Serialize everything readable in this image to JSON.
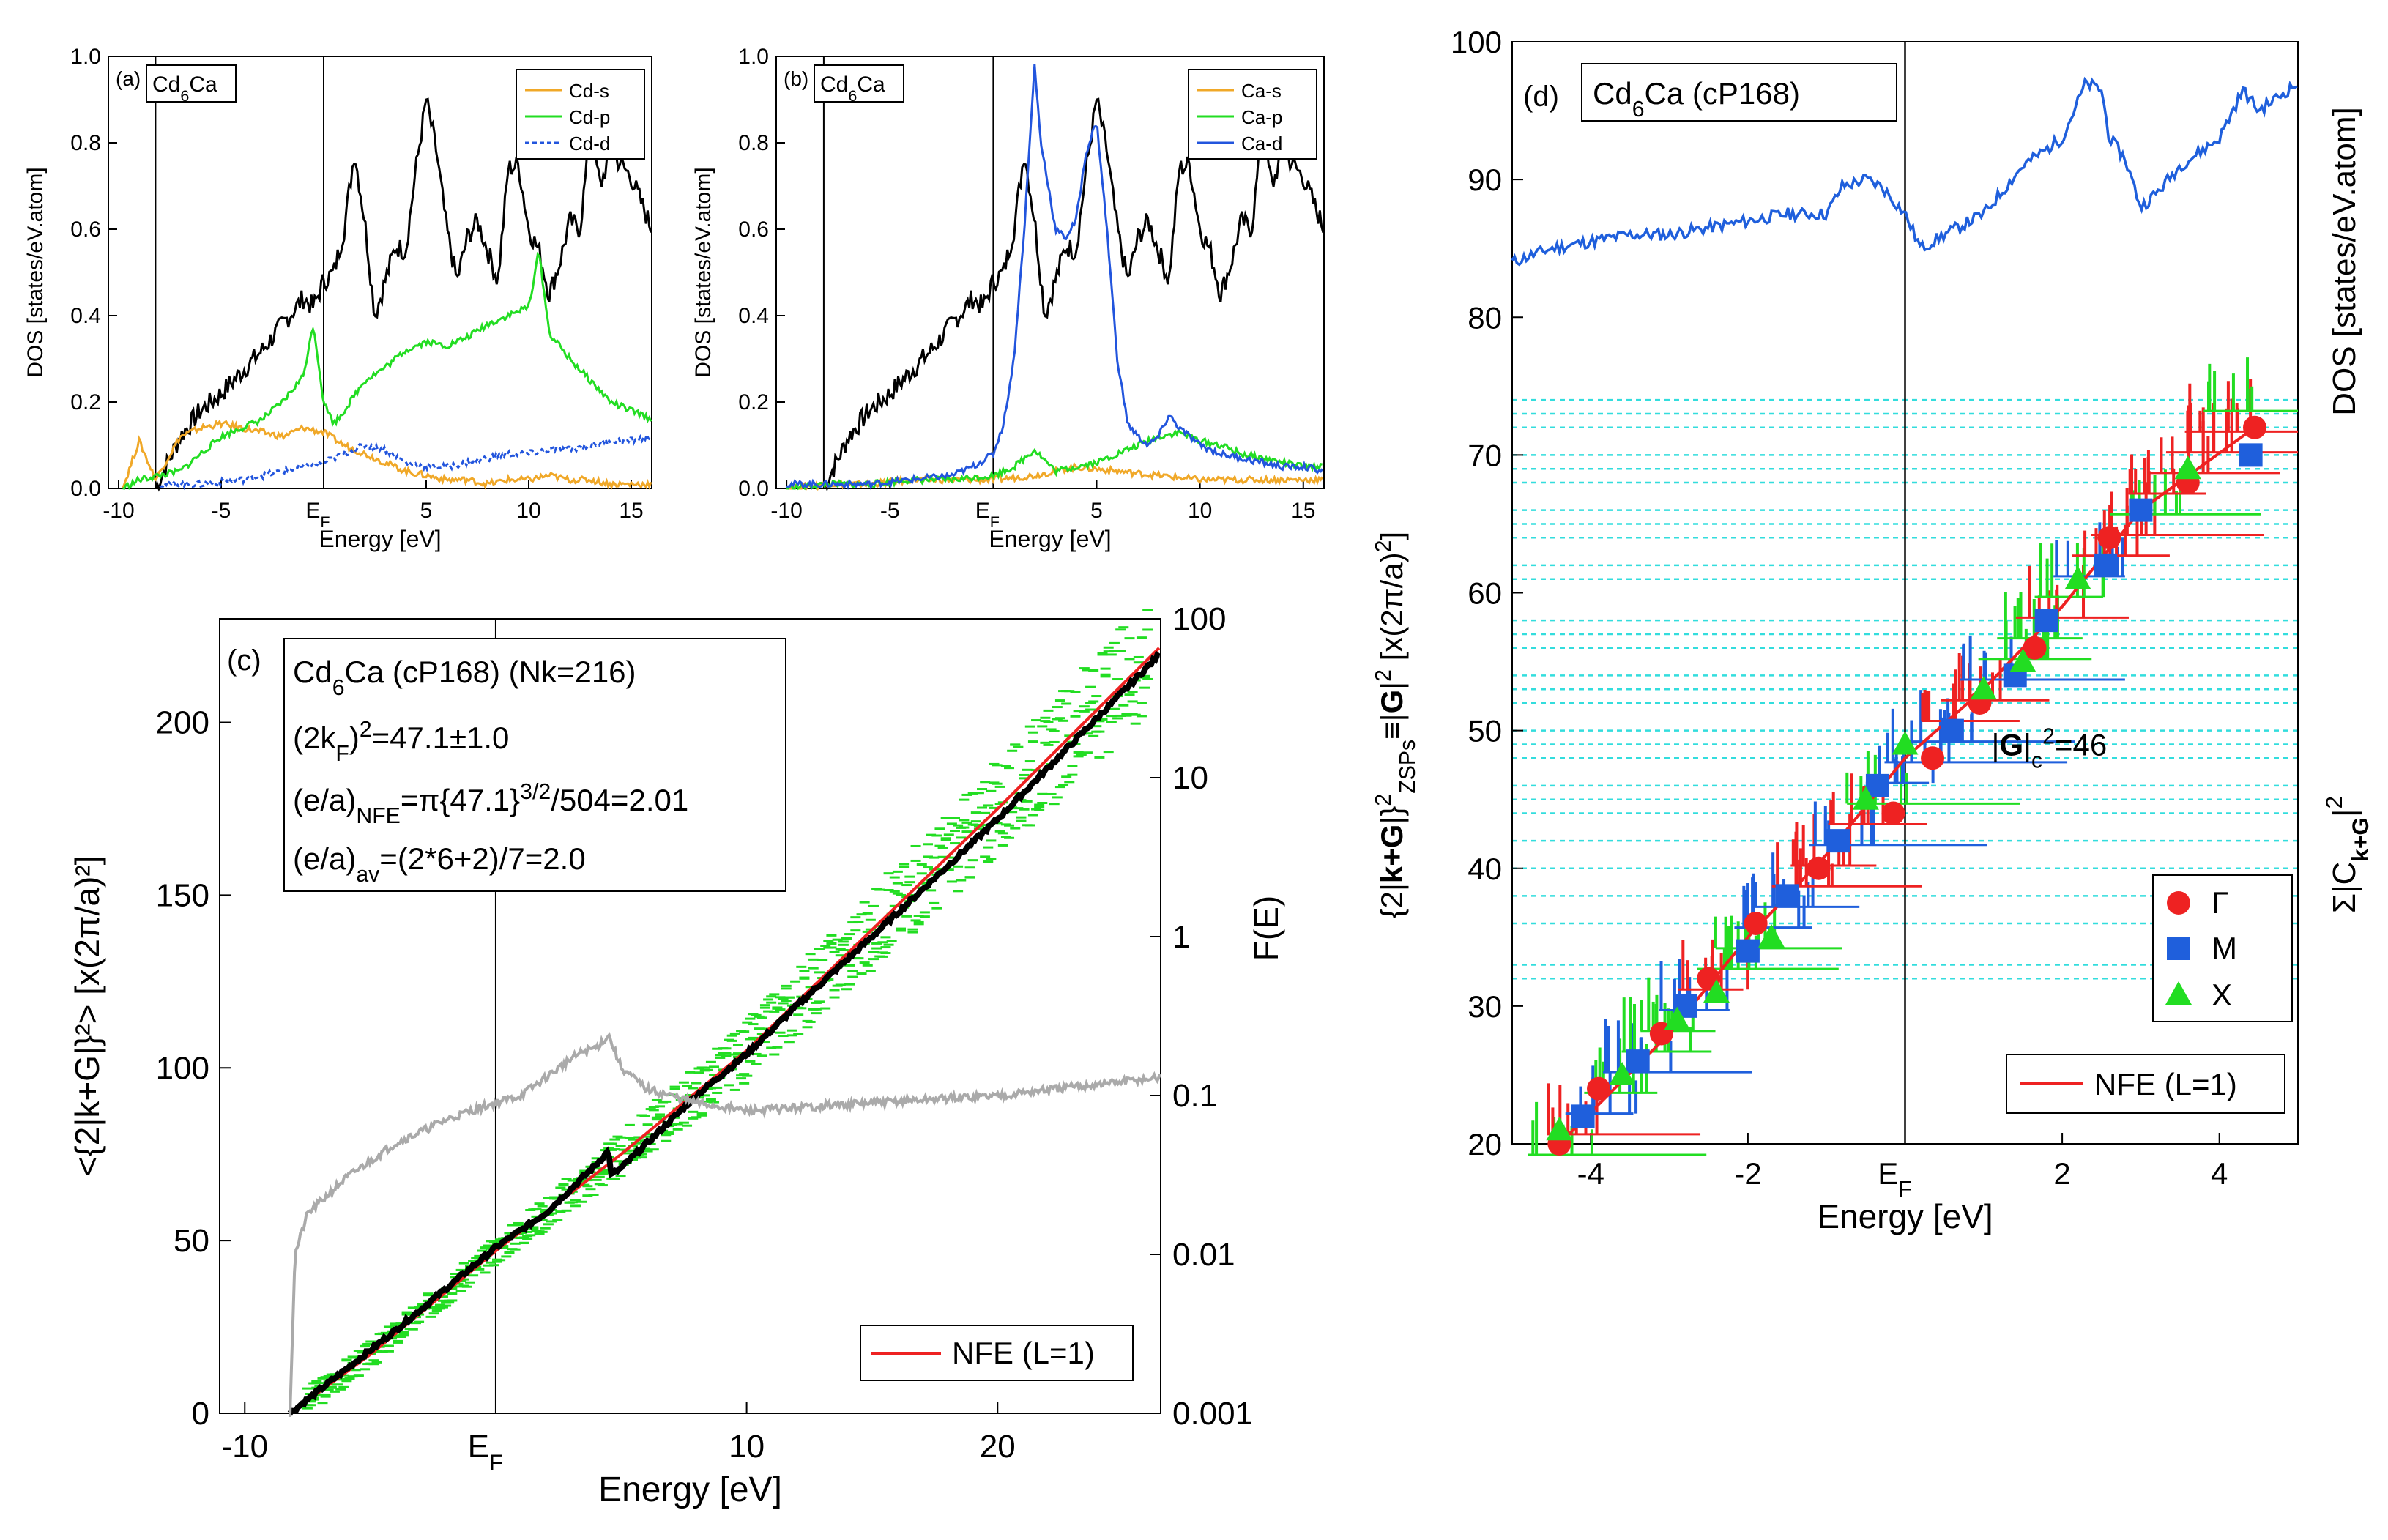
{
  "chart_data": [
    {
      "id": "a",
      "type": "line",
      "panel_label": "(a)",
      "compound_base": "Cd",
      "compound_sub": "6",
      "compound_tail": "Ca",
      "xlabel": "Energy [eV]",
      "ylabel": "DOS [states/eV.atom]",
      "xlim": [
        -10.5,
        16
      ],
      "ylim": [
        0,
        1.0
      ],
      "xticks": [
        -10,
        -5,
        5,
        10,
        15
      ],
      "xtick_labels": [
        "-10",
        "-5",
        "5",
        "10",
        "15"
      ],
      "ef_label": "E",
      "ef_sub": "F",
      "ef_value": 0,
      "vlines": [
        -8.2,
        0
      ],
      "yticks": [
        0.0,
        0.2,
        0.4,
        0.6,
        0.8,
        1.0
      ],
      "ytick_labels": [
        "0.0",
        "0.2",
        "0.4",
        "0.6",
        "0.8",
        "1.0"
      ],
      "legend": [
        "Cd-s",
        "Cd-p",
        "Cd-d"
      ],
      "colors": [
        "#f0a828",
        "#22dd22",
        "#2255dd"
      ],
      "series": [
        {
          "name": "total",
          "color": "#000000",
          "x": [
            -8.2,
            -7,
            -6,
            -5,
            -4,
            -3,
            -2,
            -1,
            -0.5,
            0,
            0.5,
            1,
            1.5,
            2,
            2.5,
            3,
            3.5,
            4,
            4.5,
            5,
            5.5,
            6,
            6.5,
            7,
            7.5,
            8,
            8.5,
            9,
            9.5,
            10,
            10.5,
            11,
            11.5,
            12,
            12.5,
            13,
            13.5,
            14,
            14.5,
            15,
            16
          ],
          "y": [
            0,
            0.12,
            0.18,
            0.22,
            0.27,
            0.32,
            0.38,
            0.44,
            0.42,
            0.48,
            0.5,
            0.6,
            0.78,
            0.62,
            0.4,
            0.48,
            0.56,
            0.55,
            0.74,
            0.9,
            0.78,
            0.6,
            0.48,
            0.58,
            0.62,
            0.55,
            0.48,
            0.74,
            0.75,
            0.6,
            0.55,
            0.45,
            0.52,
            0.62,
            0.6,
            0.82,
            0.7,
            0.78,
            0.75,
            0.72,
            0.6
          ]
        },
        {
          "name": "Cd-s",
          "color": "#f0a828",
          "x": [
            -9.8,
            -9,
            -8.2,
            -7,
            -6,
            -5,
            -4,
            -3,
            -2,
            -1,
            0,
            1,
            2,
            3,
            4,
            5,
            6,
            7,
            8,
            9,
            10,
            11,
            12,
            13,
            14,
            15,
            16
          ],
          "y": [
            0.0,
            0.11,
            0.02,
            0.12,
            0.14,
            0.15,
            0.14,
            0.13,
            0.12,
            0.14,
            0.13,
            0.1,
            0.08,
            0.06,
            0.04,
            0.03,
            0.02,
            0.02,
            0.01,
            0.02,
            0.02,
            0.03,
            0.02,
            0.02,
            0.01,
            0.01,
            0.01
          ]
        },
        {
          "name": "Cd-p",
          "color": "#22dd22",
          "x": [
            -9.8,
            -9,
            -8,
            -7,
            -6,
            -5,
            -4,
            -3,
            -2,
            -1,
            -0.5,
            0,
            0.5,
            1,
            2,
            3,
            4,
            5,
            6,
            7,
            8,
            9,
            10,
            10.5,
            11,
            12,
            13,
            14,
            15,
            16
          ],
          "y": [
            0,
            0.02,
            0.03,
            0.04,
            0.08,
            0.12,
            0.14,
            0.16,
            0.2,
            0.26,
            0.38,
            0.2,
            0.15,
            0.18,
            0.25,
            0.28,
            0.32,
            0.34,
            0.33,
            0.35,
            0.38,
            0.4,
            0.42,
            0.55,
            0.36,
            0.3,
            0.25,
            0.2,
            0.18,
            0.16
          ]
        },
        {
          "name": "Cd-d",
          "color": "#2255dd",
          "dashed": true,
          "x": [
            -8,
            -6,
            -4,
            -2,
            -1,
            0,
            1,
            2,
            3,
            4,
            5,
            6,
            7,
            8,
            9,
            10,
            11,
            12,
            13,
            14,
            15,
            16
          ],
          "y": [
            0.01,
            0.01,
            0.02,
            0.04,
            0.05,
            0.06,
            0.08,
            0.1,
            0.09,
            0.06,
            0.05,
            0.05,
            0.06,
            0.07,
            0.08,
            0.08,
            0.09,
            0.09,
            0.1,
            0.11,
            0.11,
            0.12
          ]
        }
      ]
    },
    {
      "id": "b",
      "type": "line",
      "panel_label": "(b)",
      "compound_base": "Cd",
      "compound_sub": "6",
      "compound_tail": "Ca",
      "xlabel": "Energy [eV]",
      "ylabel": "DOS [states/eV.atom]",
      "xlim": [
        -10.5,
        16
      ],
      "ylim": [
        0,
        1.0
      ],
      "xticks": [
        -10,
        -5,
        5,
        10,
        15
      ],
      "xtick_labels": [
        "-10",
        "-5",
        "5",
        "10",
        "15"
      ],
      "ef_label": "E",
      "ef_sub": "F",
      "ef_value": 0,
      "vlines": [
        -8.2,
        0
      ],
      "yticks": [
        0.0,
        0.2,
        0.4,
        0.6,
        0.8,
        1.0
      ],
      "ytick_labels": [
        "0.0",
        "0.2",
        "0.4",
        "0.6",
        "0.8",
        "1.0"
      ],
      "legend": [
        "Ca-s",
        "Ca-p",
        "Ca-d"
      ],
      "colors": [
        "#f0a828",
        "#22dd22",
        "#2255dd"
      ],
      "series": [
        {
          "name": "total",
          "color": "#000000",
          "x": [
            -8.2,
            -7,
            -6,
            -5,
            -4,
            -3,
            -2,
            -1,
            -0.5,
            0,
            0.5,
            1,
            1.5,
            2,
            2.5,
            3,
            3.5,
            4,
            4.5,
            5,
            5.5,
            6,
            6.5,
            7,
            7.5,
            8,
            8.5,
            9,
            9.5,
            10,
            10.5,
            11,
            11.5,
            12,
            12.5,
            13,
            13.5,
            14,
            14.5,
            15,
            16
          ],
          "y": [
            0,
            0.12,
            0.18,
            0.22,
            0.27,
            0.32,
            0.38,
            0.44,
            0.42,
            0.48,
            0.5,
            0.6,
            0.78,
            0.62,
            0.4,
            0.48,
            0.56,
            0.55,
            0.74,
            0.9,
            0.78,
            0.6,
            0.48,
            0.58,
            0.62,
            0.55,
            0.48,
            0.74,
            0.75,
            0.6,
            0.55,
            0.45,
            0.52,
            0.62,
            0.6,
            0.82,
            0.7,
            0.78,
            0.75,
            0.72,
            0.6
          ]
        },
        {
          "name": "Ca-s",
          "color": "#f0a828",
          "x": [
            -10,
            -8,
            -6,
            -4,
            -2,
            0,
            2,
            4,
            6,
            8,
            10,
            12,
            14,
            16
          ],
          "y": [
            0.0,
            0.01,
            0.01,
            0.02,
            0.02,
            0.02,
            0.03,
            0.05,
            0.04,
            0.03,
            0.02,
            0.02,
            0.02,
            0.02
          ]
        },
        {
          "name": "Ca-p",
          "color": "#22dd22",
          "x": [
            -10,
            -8,
            -6,
            -4,
            -2,
            0,
            1,
            2,
            3,
            4,
            5,
            6,
            7,
            8,
            9,
            10,
            11,
            12,
            13,
            14,
            15,
            16
          ],
          "y": [
            0.0,
            0.01,
            0.01,
            0.02,
            0.02,
            0.03,
            0.05,
            0.09,
            0.04,
            0.05,
            0.06,
            0.08,
            0.1,
            0.12,
            0.13,
            0.11,
            0.1,
            0.08,
            0.07,
            0.06,
            0.05,
            0.05
          ]
        },
        {
          "name": "Ca-d",
          "color": "#2255dd",
          "x": [
            -10,
            -8,
            -6,
            -4,
            -2,
            -1,
            0,
            0.5,
            1,
            1.5,
            2,
            2.3,
            2.6,
            3,
            3.5,
            4,
            4.5,
            5,
            5.5,
            6,
            6.5,
            7,
            7.5,
            8,
            8.5,
            9,
            10,
            11,
            12,
            13,
            14,
            15,
            16
          ],
          "y": [
            0.01,
            0.01,
            0.01,
            0.02,
            0.03,
            0.05,
            0.08,
            0.15,
            0.3,
            0.6,
            0.98,
            0.8,
            0.72,
            0.6,
            0.58,
            0.62,
            0.78,
            0.85,
            0.6,
            0.3,
            0.15,
            0.12,
            0.1,
            0.12,
            0.17,
            0.14,
            0.1,
            0.08,
            0.07,
            0.06,
            0.05,
            0.05,
            0.04
          ]
        }
      ]
    },
    {
      "id": "c",
      "type": "line",
      "panel_label": "(c)",
      "xlabel": "Energy [eV]",
      "ylabel_left": "<{2|k+G|}²> [x(2π/a)²]",
      "ylabel_right": "F(E)",
      "xlim": [
        -11,
        26.5
      ],
      "ylim_left": [
        0,
        230
      ],
      "ylim_right_log": [
        0.001,
        100
      ],
      "xticks": [
        -10,
        10,
        20
      ],
      "xtick_labels": [
        "-10",
        "10",
        "20"
      ],
      "ef_label": "E",
      "ef_sub": "F",
      "ef_value": 0,
      "yticks_left": [
        0,
        50,
        100,
        150,
        200
      ],
      "ytick_labels_left": [
        "0",
        "50",
        "100",
        "150",
        "200"
      ],
      "yticks_right": [
        0.001,
        0.01,
        0.1,
        1,
        10,
        100
      ],
      "ytick_labels_right": [
        "0.001",
        "0.01",
        "0.1",
        "1",
        "10",
        "100"
      ],
      "info_title": "Cd₆Ca (cP168) (Nk=216)",
      "info_lines": [
        "(2kF)²=47.1±1.0",
        "(e/a)NFE=π{47.1}^3/2/504=2.01",
        "(e/a)av=(2*6+2)/7=2.0"
      ],
      "legend": [
        "NFE (L=1)"
      ],
      "series": [
        {
          "name": "NFE (L=1)",
          "color": "#ee2222",
          "x": [
            -8.2,
            -5,
            0,
            5,
            10,
            15,
            20,
            26.5
          ],
          "y": [
            0,
            17,
            47,
            75,
            105,
            140,
            175,
            222
          ]
        },
        {
          "name": "FsBz-numerical",
          "color": "#000000",
          "x": [
            -8.2,
            -4,
            0,
            2,
            3,
            4,
            4.5,
            4.6,
            5,
            8,
            10,
            12,
            15,
            20,
            26.5
          ],
          "y": [
            0,
            24,
            48,
            58,
            65,
            72,
            76,
            69,
            71,
            92,
            104,
            118,
            138,
            172,
            220
          ]
        },
        {
          "name": "F(E)",
          "color": "#aaaaaa",
          "axis": "right",
          "x": [
            -8.2,
            -8,
            -7.5,
            -6,
            -4,
            -2,
            -1,
            0,
            1,
            2,
            3,
            3.5,
            4,
            4.5,
            5,
            6,
            8,
            10,
            15,
            20,
            26.5
          ],
          "y": [
            0.001,
            0.01,
            0.018,
            0.03,
            0.05,
            0.07,
            0.08,
            0.09,
            0.1,
            0.13,
            0.17,
            0.19,
            0.2,
            0.24,
            0.15,
            0.11,
            0.09,
            0.08,
            0.09,
            0.1,
            0.13
          ]
        }
      ]
    },
    {
      "id": "d",
      "type": "scatter",
      "panel_label": "(d)",
      "info_title": "Cd₆Ca (cP168)",
      "xlabel": "Energy [eV]",
      "ylabel_left": "{2|k+G|}²ZSPs≡|G|² [x(2π/a)²]",
      "ylabel_right": "DOS [states/eV.atom]",
      "ylabel_right2": "Σ|Ck+G|²",
      "xlim": [
        -5,
        5
      ],
      "ylim": [
        20,
        100
      ],
      "xticks": [
        -4,
        -2,
        2,
        4
      ],
      "xtick_labels": [
        "-4",
        "-2",
        "2",
        "4"
      ],
      "ef_label": "E",
      "ef_sub": "F",
      "ef_value": 0,
      "yticks": [
        20,
        30,
        40,
        50,
        60,
        70,
        80,
        90,
        100
      ],
      "ytick_labels": [
        "20",
        "30",
        "40",
        "50",
        "60",
        "70",
        "80",
        "90",
        "100"
      ],
      "gc_label": "|G|c²=46",
      "gc_value": 46,
      "zsp_levels": [
        32,
        33,
        36,
        38,
        40,
        42,
        44,
        45,
        46,
        48,
        49,
        50,
        52,
        53,
        54,
        56,
        57,
        58,
        61,
        62,
        64,
        65,
        66,
        68,
        69,
        70,
        72,
        73,
        74
      ],
      "legend": [
        "Γ",
        "M",
        "X",
        "NFE (L=1)"
      ],
      "markers": {
        "Gamma": {
          "color": "#ee2222",
          "x": [
            -4.4,
            -3.9,
            -3.1,
            -2.5,
            -1.9,
            -1.1,
            -0.15,
            0.35,
            0.95,
            1.65,
            2.6,
            3.6,
            4.45
          ],
          "y": [
            20,
            24,
            28,
            32,
            36,
            40,
            44,
            48,
            52,
            56,
            64,
            68,
            72
          ]
        },
        "M": {
          "color": "#1f5fdc",
          "x": [
            -4.1,
            -3.4,
            -2.8,
            -2.0,
            -1.5,
            -0.85,
            -0.35,
            0.6,
            1.4,
            1.8,
            2.55,
            3.0,
            4.4
          ],
          "y": [
            22,
            26,
            30,
            34,
            38,
            42,
            46,
            50,
            54,
            58,
            62,
            66,
            70
          ]
        },
        "X": {
          "color": "#22dd22",
          "x": [
            -4.4,
            -3.6,
            -2.9,
            -2.4,
            -1.7,
            -0.5,
            0.0,
            1.0,
            1.5,
            2.2,
            3.6
          ],
          "y": [
            21,
            25,
            29,
            31,
            35,
            45,
            49,
            53,
            55,
            61,
            69
          ]
        }
      },
      "nfe": {
        "color": "#ee2222",
        "x": [
          -4.4,
          -3,
          -2,
          -1,
          0,
          1,
          2,
          3,
          4.45
        ],
        "y": [
          20,
          28,
          35,
          41,
          48,
          53,
          59,
          66,
          72
        ]
      },
      "dos": {
        "color": "#1f5fdc",
        "x": [
          -5,
          -4.5,
          -4,
          -3.5,
          -3,
          -2.5,
          -2,
          -1.5,
          -1,
          -0.8,
          -0.5,
          -0.3,
          0,
          0.2,
          0.5,
          1,
          1.5,
          2,
          2.3,
          2.5,
          2.6,
          2.8,
          3,
          3.2,
          3.5,
          4,
          4.3,
          4.5,
          5
        ],
        "y": [
          84,
          85,
          85.5,
          86,
          86,
          86.5,
          87,
          87.5,
          87.5,
          89.5,
          90,
          89.5,
          87.5,
          85,
          86,
          87.5,
          91,
          93,
          97,
          96.5,
          93,
          91.5,
          88,
          89,
          91,
          93,
          96.5,
          95,
          97
        ]
      }
    }
  ]
}
